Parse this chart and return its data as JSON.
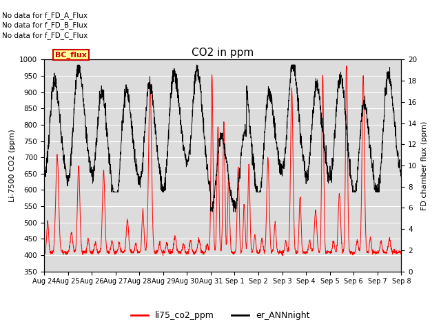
{
  "title": "CO2 in ppm",
  "ylabel_left": "Li-7500 CO2 (ppm)",
  "ylabel_right": "FD chamber flux (ppm)",
  "ylim_left": [
    350,
    1000
  ],
  "ylim_right": [
    0,
    20
  ],
  "yticks_left": [
    350,
    400,
    450,
    500,
    550,
    600,
    650,
    700,
    750,
    800,
    850,
    900,
    950,
    1000
  ],
  "yticks_right": [
    0,
    2,
    4,
    6,
    8,
    10,
    12,
    14,
    16,
    18,
    20
  ],
  "legend_entries": [
    "li75_co2_ppm",
    "er_ANNnight"
  ],
  "legend_colors": [
    "#ff0000",
    "#000000"
  ],
  "line_color_red": "#ff0000",
  "line_color_black": "#000000",
  "annotations": [
    "No data for f_FD_A_Flux",
    "No data for f_FD_B_Flux",
    "No data for f_FD_C_Flux"
  ],
  "bc_flux_label": "BC_flux",
  "bc_flux_color": "#cc0000",
  "bc_flux_bg": "#ffff99",
  "background_color": "#dcdcdc",
  "grid_color": "#ffffff",
  "total_days": 15.0,
  "n_points": 2000
}
